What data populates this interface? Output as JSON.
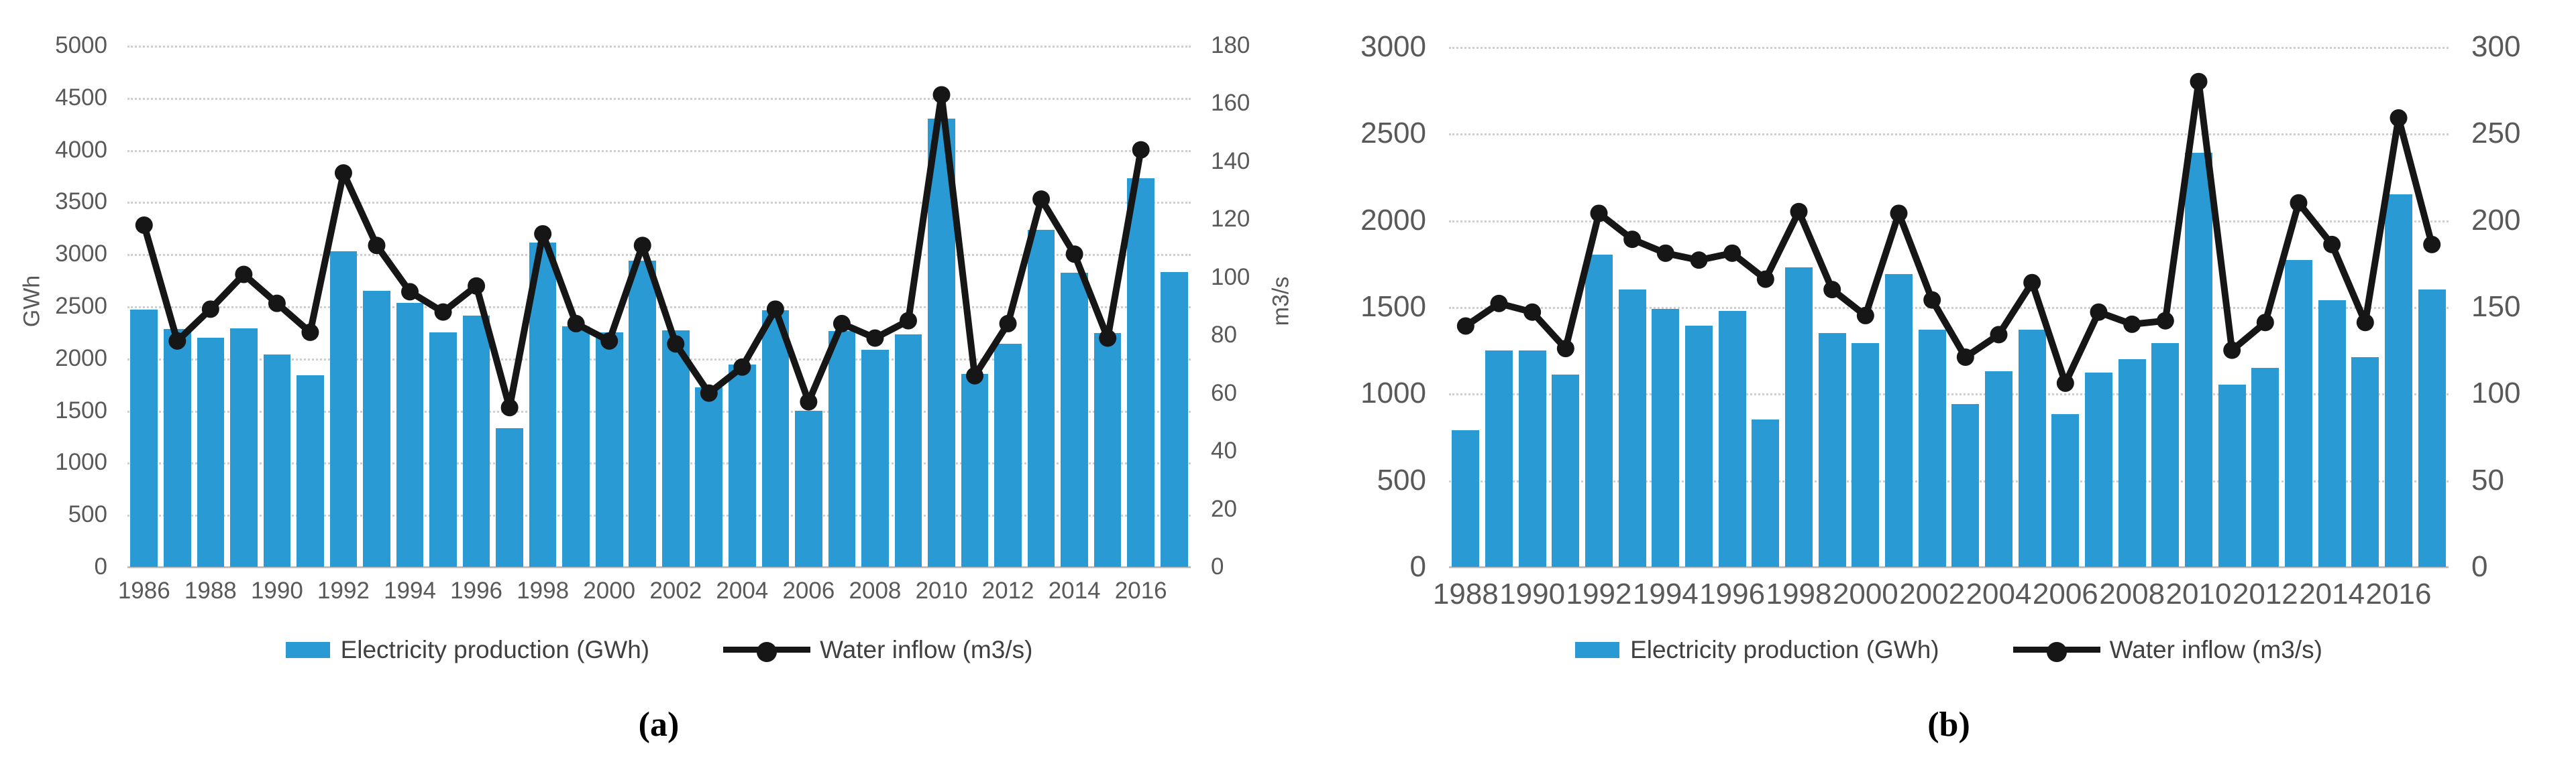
{
  "figure": {
    "background": "#ffffff",
    "bar_color": "#2a9ad4",
    "line_color": "#161616",
    "grid_color": "#cfcfcf",
    "tick_color": "#595959",
    "legend": {
      "bar_label": "Electricity production (GWh)",
      "line_label": "Water inflow (m3/s)"
    }
  },
  "chart_data": [
    {
      "id": "a",
      "type": "bar+line",
      "caption": "(a)",
      "categories": [
        1986,
        1987,
        1988,
        1989,
        1990,
        1991,
        1992,
        1993,
        1994,
        1995,
        1996,
        1997,
        1998,
        1999,
        2000,
        2001,
        2002,
        2003,
        2004,
        2005,
        2006,
        2007,
        2008,
        2009,
        2010,
        2011,
        2012,
        2013,
        2014,
        2015,
        2016,
        2017
      ],
      "x_tick_labels": [
        "1986",
        "1988",
        "1990",
        "1992",
        "1994",
        "1996",
        "1998",
        "2000",
        "2002",
        "2004",
        "2006",
        "2008",
        "2010",
        "2012",
        "2014",
        "2016"
      ],
      "left_axis": {
        "label": "GWh",
        "min": 0,
        "max": 5000,
        "step": 500,
        "ticks": [
          "0",
          "500",
          "1000",
          "1500",
          "2000",
          "2500",
          "3000",
          "3500",
          "4000",
          "4500",
          "5000"
        ]
      },
      "right_axis": {
        "label": "m3/s",
        "min": 0,
        "max": 180,
        "step": 20,
        "ticks": [
          "0",
          "20",
          "40",
          "60",
          "80",
          "100",
          "120",
          "140",
          "160",
          "180"
        ]
      },
      "grid": true,
      "legend_position": "bottom",
      "series": [
        {
          "name": "Electricity production (GWh)",
          "type": "bar",
          "axis": "left",
          "values": [
            2470,
            2280,
            2200,
            2290,
            2040,
            1840,
            3030,
            2650,
            2530,
            2250,
            2410,
            1330,
            3110,
            2310,
            2250,
            2940,
            2270,
            1720,
            1940,
            2460,
            1500,
            2260,
            2080,
            2230,
            4300,
            1850,
            2140,
            3230,
            2820,
            2240,
            3730,
            2830
          ]
        },
        {
          "name": "Water inflow (m3/s)",
          "type": "line",
          "axis": "right",
          "values": [
            118,
            78,
            89,
            101,
            91,
            81,
            136,
            111,
            95,
            88,
            97,
            55,
            115,
            84,
            78,
            111,
            77,
            60,
            69,
            89,
            57,
            84,
            79,
            85,
            163,
            66,
            84,
            127,
            108,
            79,
            144,
            null
          ]
        }
      ]
    },
    {
      "id": "b",
      "type": "bar+line",
      "caption": "(b)",
      "categories": [
        1988,
        1989,
        1990,
        1991,
        1992,
        1993,
        1994,
        1995,
        1996,
        1997,
        1998,
        1999,
        2000,
        2001,
        2002,
        2003,
        2004,
        2005,
        2006,
        2007,
        2008,
        2009,
        2010,
        2011,
        2012,
        2013,
        2014,
        2015,
        2016,
        2017
      ],
      "x_tick_labels": [
        "1988",
        "1990",
        "1992",
        "1994",
        "1996",
        "1998",
        "2000",
        "2002",
        "2004",
        "2006",
        "2008",
        "2010",
        "2012",
        "2014",
        "2016"
      ],
      "left_axis": {
        "label": "",
        "min": 0,
        "max": 3000,
        "step": 500,
        "ticks": [
          "0",
          "500",
          "1000",
          "1500",
          "2000",
          "2500",
          "3000"
        ]
      },
      "right_axis": {
        "label": "",
        "min": 0,
        "max": 300,
        "step": 50,
        "ticks": [
          "0",
          "50",
          "100",
          "150",
          "200",
          "250",
          "300"
        ]
      },
      "grid": true,
      "legend_position": "bottom",
      "series": [
        {
          "name": "Electricity production (GWh)",
          "type": "bar",
          "axis": "left",
          "values": [
            790,
            1250,
            1250,
            1110,
            1800,
            1600,
            1490,
            1390,
            1475,
            850,
            1730,
            1350,
            1290,
            1690,
            1370,
            940,
            1130,
            1370,
            880,
            1120,
            1200,
            1290,
            2390,
            1050,
            1150,
            1770,
            1540,
            1210,
            2150,
            1600
          ]
        },
        {
          "name": "Water inflow (m3/s)",
          "type": "line",
          "axis": "right",
          "values": [
            139,
            152,
            147,
            126,
            204,
            189,
            181,
            177,
            181,
            166,
            205,
            160,
            145,
            204,
            154,
            121,
            134,
            164,
            106,
            147,
            140,
            142,
            280,
            125,
            141,
            210,
            186,
            141,
            259,
            186
          ]
        }
      ]
    }
  ]
}
